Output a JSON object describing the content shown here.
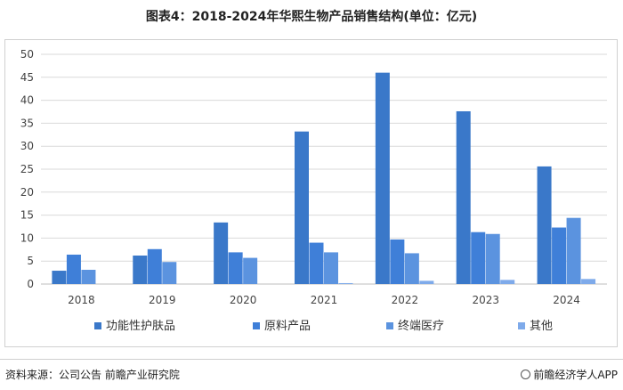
{
  "title": "图表4：2018-2024年华熙生物产品销售结构(单位：亿元)",
  "source": "资料来源：公司公告 前瞻产业研究院",
  "brand": "前瞻经济学人APP",
  "chart_data": {
    "type": "bar",
    "title": "图表4：2018-2024年华熙生物产品销售结构(单位：亿元)",
    "xlabel": "",
    "ylabel": "",
    "categories": [
      "2018",
      "2019",
      "2020",
      "2021",
      "2022",
      "2023",
      "2024"
    ],
    "ylim": [
      0,
      50
    ],
    "yticks": [
      0,
      5,
      10,
      15,
      20,
      25,
      30,
      35,
      40,
      45,
      50
    ],
    "grid": true,
    "legend_position": "bottom",
    "series": [
      {
        "name": "功能性护肤品",
        "color": "#3a78c9",
        "values": [
          2.9,
          6.2,
          13.4,
          33.2,
          46.0,
          37.6,
          25.6
        ]
      },
      {
        "name": "原料产品",
        "color": "#3f7fd8",
        "values": [
          6.4,
          7.6,
          6.9,
          9.0,
          9.7,
          11.3,
          12.3
        ]
      },
      {
        "name": "终端医疗",
        "color": "#5b93df",
        "values": [
          3.1,
          4.8,
          5.7,
          6.9,
          6.7,
          10.9,
          14.4
        ]
      },
      {
        "name": "其他",
        "color": "#7eaaea",
        "values": [
          0.0,
          0.0,
          0.0,
          0.2,
          0.7,
          0.9,
          1.1
        ]
      }
    ]
  }
}
